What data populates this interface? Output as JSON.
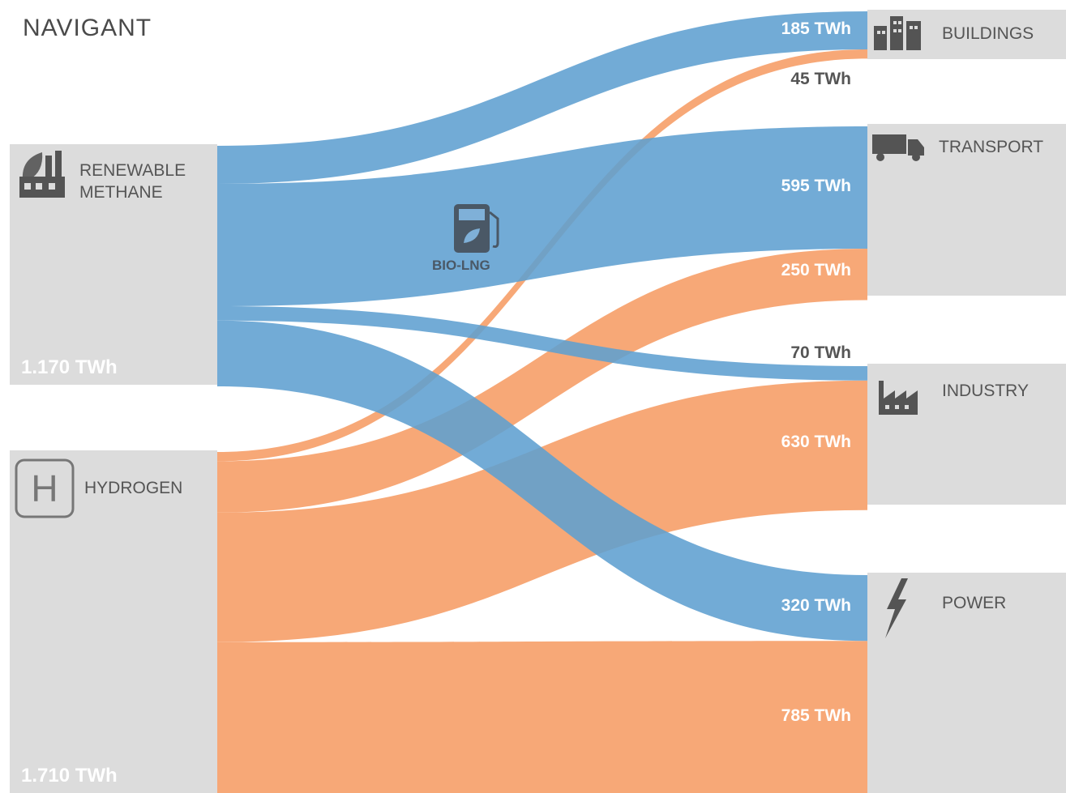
{
  "brand": "NAVIGANT",
  "colors": {
    "methane": "#5f9fd0",
    "hydrogen": "#f7a877",
    "node": "#dcdcdc",
    "icon": "#545454"
  },
  "icons": {
    "renewable_methane": "factory-leaf-icon",
    "hydrogen": "hydrogen-icon",
    "buildings": "buildings-icon",
    "transport": "truck-icon",
    "industry": "factory-icon",
    "power": "lightning-icon",
    "bio_lng": "fuel-pump-icon"
  },
  "sources": {
    "methane": {
      "label_line1": "RENEWABLE",
      "label_line2": "METHANE",
      "total": "1.170 TWh"
    },
    "hydrogen": {
      "label": "HYDROGEN",
      "total": "1.710 TWh"
    }
  },
  "targets": {
    "buildings": "BUILDINGS",
    "transport": "TRANSPORT",
    "industry": "INDUSTRY",
    "power": "POWER"
  },
  "annotation": "BIO-LNG",
  "chart_data": {
    "type": "sankey",
    "unit": "TWh",
    "nodes": [
      "RENEWABLE METHANE",
      "HYDROGEN",
      "BUILDINGS",
      "TRANSPORT",
      "INDUSTRY",
      "POWER"
    ],
    "source_totals": {
      "RENEWABLE METHANE": 1170,
      "HYDROGEN": 1710
    },
    "flows": [
      {
        "from": "RENEWABLE METHANE",
        "to": "BUILDINGS",
        "value": 185,
        "label": "185 TWh"
      },
      {
        "from": "HYDROGEN",
        "to": "BUILDINGS",
        "value": 45,
        "label": "45 TWh"
      },
      {
        "from": "RENEWABLE METHANE",
        "to": "TRANSPORT",
        "value": 595,
        "label": "595 TWh"
      },
      {
        "from": "HYDROGEN",
        "to": "TRANSPORT",
        "value": 250,
        "label": "250 TWh"
      },
      {
        "from": "RENEWABLE METHANE",
        "to": "INDUSTRY",
        "value": 70,
        "label": "70 TWh"
      },
      {
        "from": "HYDROGEN",
        "to": "INDUSTRY",
        "value": 630,
        "label": "630 TWh"
      },
      {
        "from": "RENEWABLE METHANE",
        "to": "POWER",
        "value": 320,
        "label": "320 TWh"
      },
      {
        "from": "HYDROGEN",
        "to": "POWER",
        "value": 785,
        "label": "785 TWh"
      }
    ]
  }
}
